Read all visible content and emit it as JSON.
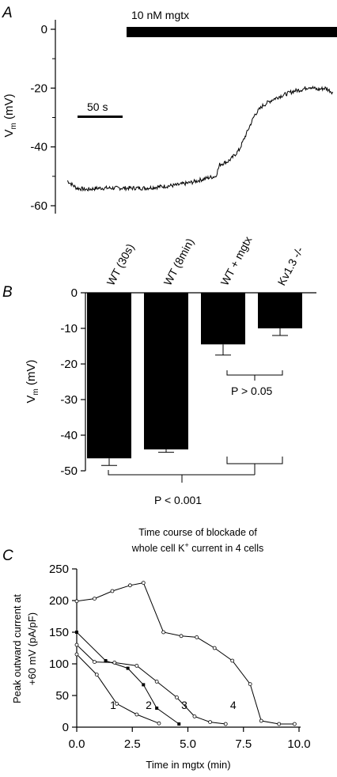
{
  "chart_data": [
    {
      "panel": "A",
      "type": "line",
      "xlabel": "",
      "ylabel": "V",
      "ylabel_sub": "m",
      "ylabel_unit": " (mV)",
      "ylim": [
        -62,
        0
      ],
      "yticks": [
        0,
        -20,
        -40,
        -60
      ],
      "yticklabels": [
        "0",
        "-20",
        "-40",
        "-60"
      ],
      "scalebar_label": "50 s",
      "drug_bar_label": "10 nM mgtx",
      "trace": {
        "t": [
          0,
          12,
          25,
          40,
          60,
          80,
          100,
          120,
          140,
          160,
          180,
          190,
          195,
          200,
          205,
          210,
          220,
          230,
          240,
          250,
          256,
          262,
          270,
          280,
          290,
          300,
          310,
          320,
          330,
          340
        ],
        "v": [
          -51.5,
          -54,
          -54.5,
          -54,
          -54,
          -54,
          -54,
          -53.5,
          -53,
          -52,
          -50.5,
          -50,
          -46,
          -45.5,
          -45,
          -44,
          -41,
          -35,
          -29,
          -26,
          -25,
          -24,
          -23,
          -22,
          -21,
          -20.5,
          -19.5,
          -20.5,
          -20,
          -21.5
        ]
      }
    },
    {
      "panel": "B",
      "type": "bar",
      "categories": [
        "WT (30s)",
        "WT (8min)",
        "WT + mgtx",
        "Kv1.3 -/-"
      ],
      "values": [
        -46.5,
        -44,
        -14.5,
        -10
      ],
      "errors": [
        2,
        0.8,
        3,
        2
      ],
      "ylabel": "V",
      "ylabel_sub": "m",
      "ylabel_unit": " (mV)",
      "ylim": [
        -50,
        0
      ],
      "yticks": [
        0,
        -10,
        -20,
        -30,
        -40,
        -50
      ],
      "yticklabels": [
        "0",
        "-10",
        "-20",
        "-30",
        "-40",
        "-50"
      ],
      "annotations": [
        "P > 0.05",
        "P < 0.001"
      ]
    },
    {
      "panel": "C",
      "type": "line",
      "title_line1": "Time course of blockade of",
      "title_line2_pre": "whole cell K",
      "title_line2_sup": "+",
      "title_line2_post": " current in 4 cells",
      "xlabel": "Time in mgtx (min)",
      "ylabel_line1": "Peak outward current at",
      "ylabel_line2": "+60 mV (pA/pF)",
      "xlim": [
        0,
        10
      ],
      "ylim": [
        0,
        250
      ],
      "xticks": [
        0,
        2.5,
        5,
        7.5,
        10
      ],
      "xticklabels": [
        "0.0",
        "2.5",
        "5.0",
        "7.5",
        "10.0"
      ],
      "yticks": [
        0,
        50,
        100,
        150,
        200,
        250
      ],
      "yticklabels": [
        "0",
        "50",
        "100",
        "150",
        "200",
        "250"
      ],
      "series": [
        {
          "name": "1",
          "marker": "open",
          "x": [
            0,
            0.9,
            1.8,
            2.7,
            3.7
          ],
          "y": [
            115,
            83,
            37,
            20,
            6
          ],
          "label_at": [
            1.5,
            35
          ]
        },
        {
          "name": "2",
          "marker": "filled",
          "x": [
            0,
            1.3,
            2.3,
            3.0,
            3.6,
            4.6
          ],
          "y": [
            150,
            105,
            93,
            67,
            30,
            5
          ],
          "label_at": [
            3.1,
            35
          ]
        },
        {
          "name": "3",
          "marker": "open",
          "x": [
            0,
            0.8,
            1.7,
            2.7,
            3.6,
            4.5,
            5.3,
            6.0,
            6.7
          ],
          "y": [
            130,
            103,
            102,
            97,
            72,
            47,
            17,
            8,
            5
          ],
          "label_at": [
            4.7,
            35
          ]
        },
        {
          "name": "4",
          "marker": "open",
          "x": [
            0,
            0.8,
            1.6,
            2.4,
            3.0,
            3.9,
            4.7,
            5.4,
            6.2,
            7.0,
            7.8,
            8.3,
            9.1,
            9.8
          ],
          "y": [
            199,
            203,
            215,
            224,
            228,
            150,
            144,
            142,
            125,
            105,
            68,
            10,
            5,
            5
          ],
          "label_at": [
            6.9,
            35
          ]
        }
      ]
    }
  ]
}
